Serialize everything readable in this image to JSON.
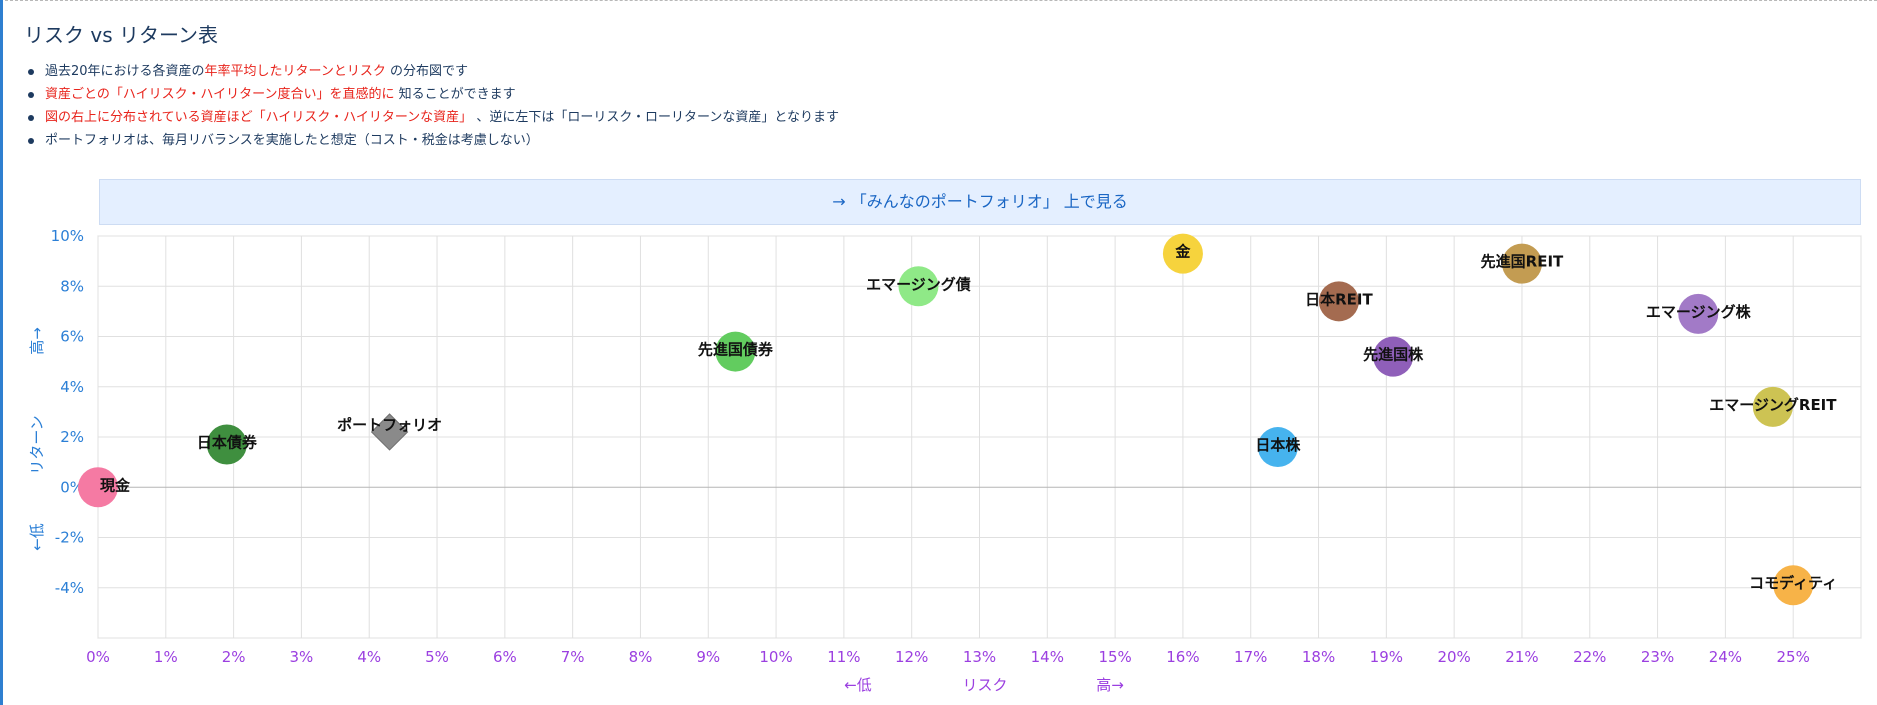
{
  "page": {
    "title": "リスク vs リターン表",
    "bullets": [
      [
        {
          "t": "過去20年における各資産の",
          "red": false
        },
        {
          "t": "年率平均したリターンとリスク",
          "red": true
        },
        {
          "t": " の分布図です",
          "red": false
        }
      ],
      [
        {
          "t": "資産ごとの「ハイリスク・ハイリターン度合い」を直感的に",
          "red": true
        },
        {
          "t": " 知ることができます",
          "red": false
        }
      ],
      [
        {
          "t": "図の右上に分布されている資産ほど「ハイリスク・ハイリターンな資産」",
          "red": true
        },
        {
          "t": " 、逆に左下は「ローリスク・ローリターンな資産」となります",
          "red": false
        }
      ],
      [
        {
          "t": "ポートフォリオは、毎月リバランスを実施したと想定（コスト・税金は考慮しない）",
          "red": false
        }
      ]
    ],
    "banner_link": "→ 「みんなのポートフォリオ」 上で見る"
  },
  "chart_data": {
    "type": "scatter",
    "xlabel": "リスク",
    "xlabel_low": "←低",
    "xlabel_high": "高→",
    "ylabel": "リターン",
    "ylabel_low": "←低",
    "ylabel_high": "高→",
    "xlim": [
      0,
      26
    ],
    "ylim": [
      -6,
      10
    ],
    "x_ticks": [
      "0%",
      "1%",
      "2%",
      "3%",
      "4%",
      "5%",
      "6%",
      "7%",
      "8%",
      "9%",
      "10%",
      "11%",
      "12%",
      "13%",
      "14%",
      "15%",
      "16%",
      "17%",
      "18%",
      "19%",
      "20%",
      "21%",
      "22%",
      "23%",
      "24%",
      "25%"
    ],
    "y_ticks": [
      "10%",
      "8%",
      "6%",
      "4%",
      "2%",
      "0%",
      "-2%",
      "-4%"
    ],
    "grid": true,
    "points": [
      {
        "name": "現金",
        "x": 0.0,
        "y": 0.0,
        "color": "#f57aa3",
        "shape": "circle",
        "label_pos": "right"
      },
      {
        "name": "日本債券",
        "x": 1.9,
        "y": 1.7,
        "color": "#3f8f3f",
        "shape": "circle",
        "label_pos": "center"
      },
      {
        "name": "ポートフォリオ",
        "x": 4.3,
        "y": 2.2,
        "color": "#8a8a8a",
        "shape": "diamond",
        "label_pos": "center"
      },
      {
        "name": "先進国債券",
        "x": 9.4,
        "y": 5.4,
        "color": "#62cc5f",
        "shape": "circle",
        "label_pos": "center"
      },
      {
        "name": "エマージング債",
        "x": 12.1,
        "y": 8.0,
        "color": "#8fe987",
        "shape": "circle",
        "label_pos": "center"
      },
      {
        "name": "金",
        "x": 16.0,
        "y": 9.3,
        "color": "#f6d33d",
        "shape": "circle",
        "label_pos": "center"
      },
      {
        "name": "日本株",
        "x": 17.4,
        "y": 1.6,
        "color": "#46b3ee",
        "shape": "circle",
        "label_pos": "center"
      },
      {
        "name": "日本REIT",
        "x": 18.3,
        "y": 7.4,
        "color": "#a46b50",
        "shape": "circle",
        "label_pos": "center"
      },
      {
        "name": "先進国株",
        "x": 19.1,
        "y": 5.2,
        "color": "#8f5fb9",
        "shape": "circle",
        "label_pos": "center"
      },
      {
        "name": "先進国REIT",
        "x": 21.0,
        "y": 8.9,
        "color": "#c39c52",
        "shape": "circle",
        "label_pos": "center"
      },
      {
        "name": "エマージング株",
        "x": 23.6,
        "y": 6.9,
        "color": "#a27ac7",
        "shape": "circle",
        "label_pos": "center"
      },
      {
        "name": "エマージングREIT",
        "x": 24.7,
        "y": 3.2,
        "color": "#cdc353",
        "shape": "circle",
        "label_pos": "center"
      },
      {
        "name": "コモディティ",
        "x": 25.0,
        "y": -3.9,
        "color": "#f7b348",
        "shape": "circle",
        "label_pos": "center"
      }
    ]
  }
}
